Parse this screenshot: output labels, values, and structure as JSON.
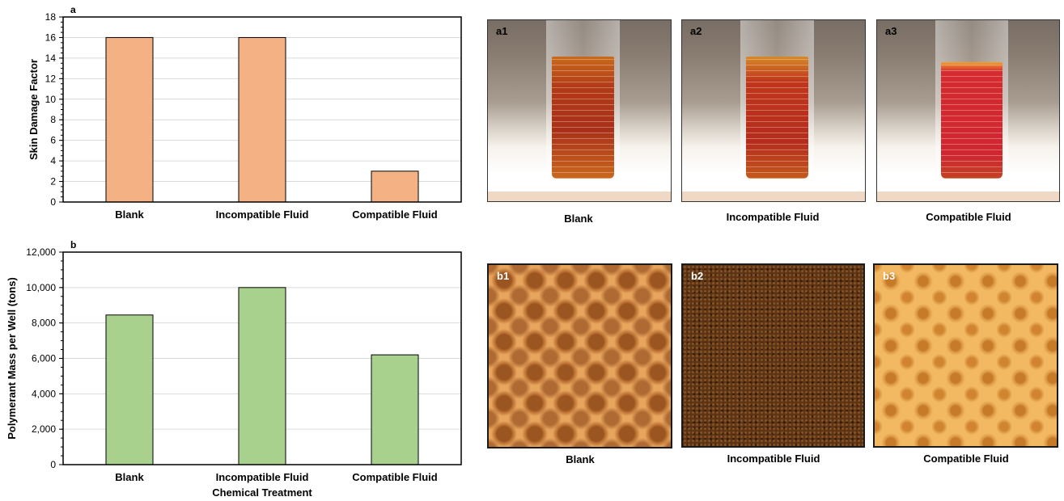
{
  "chart_data": [
    {
      "type": "bar",
      "panel_label": "a",
      "categories": [
        "Blank",
        "Incompatible Fluid",
        "Compatible Fluid"
      ],
      "values": [
        16,
        16,
        3
      ],
      "xlabel": "",
      "ylabel": "Skin Damage Factor",
      "ylim": [
        0,
        18
      ],
      "yticks": [
        "0",
        "2",
        "4",
        "6",
        "8",
        "10",
        "12",
        "14",
        "16",
        "18"
      ],
      "bar_color": "#f4b183",
      "grid": true
    },
    {
      "type": "bar",
      "panel_label": "b",
      "categories": [
        "Blank",
        "Incompatible Fluid",
        "Compatible Fluid"
      ],
      "values": [
        8450,
        10000,
        6200
      ],
      "xlabel": "Chemical Treatment",
      "ylabel": "Polymerant Mass per Well (tons)",
      "ylim": [
        0,
        12000
      ],
      "yticks": [
        "0",
        "2,000",
        "4,000",
        "6,000",
        "8,000",
        "10,000",
        "12,000"
      ],
      "bar_color": "#a9d18e",
      "grid": true
    }
  ],
  "photos_row1": [
    {
      "label": "a1",
      "caption": "Blank"
    },
    {
      "label": "a2",
      "caption": "Incompatible Fluid"
    },
    {
      "label": "a3",
      "caption": "Compatible Fluid"
    }
  ],
  "photos_row2": [
    {
      "label": "b1",
      "caption": "Blank"
    },
    {
      "label": "b2",
      "caption": "Incompatible Fluid"
    },
    {
      "label": "b3",
      "caption": "Compatible Fluid"
    }
  ]
}
